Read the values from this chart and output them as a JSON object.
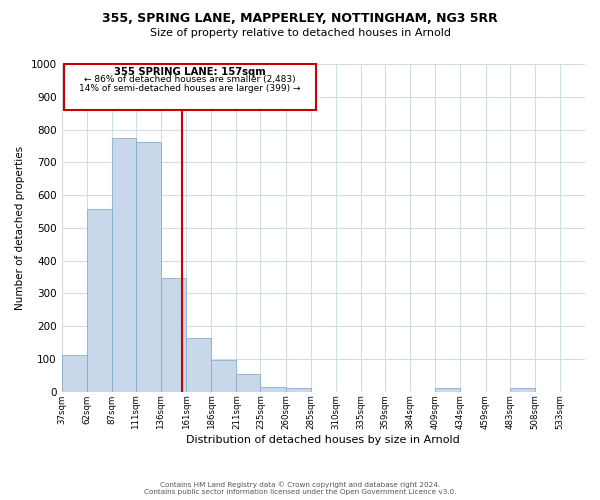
{
  "title1": "355, SPRING LANE, MAPPERLEY, NOTTINGHAM, NG3 5RR",
  "title2": "Size of property relative to detached houses in Arnold",
  "xlabel": "Distribution of detached houses by size in Arnold",
  "ylabel": "Number of detached properties",
  "bar_left_edges": [
    37,
    62,
    87,
    111,
    136,
    161,
    186,
    211,
    235,
    260,
    285,
    310,
    335,
    359,
    384,
    409,
    434,
    459,
    483,
    508
  ],
  "bar_widths": [
    25,
    25,
    24,
    25,
    25,
    25,
    25,
    24,
    25,
    25,
    25,
    25,
    24,
    25,
    25,
    25,
    25,
    24,
    25,
    25
  ],
  "bar_heights": [
    113,
    558,
    775,
    762,
    348,
    165,
    98,
    55,
    15,
    12,
    0,
    0,
    0,
    0,
    0,
    12,
    0,
    0,
    12,
    0
  ],
  "bar_color": "#c8d8ea",
  "bar_edge_color": "#8ab0cc",
  "xlim_left": 37,
  "xlim_right": 558,
  "ylim": [
    0,
    1000
  ],
  "yticks": [
    0,
    100,
    200,
    300,
    400,
    500,
    600,
    700,
    800,
    900,
    1000
  ],
  "xtick_positions": [
    37,
    62,
    87,
    111,
    136,
    161,
    186,
    211,
    235,
    260,
    285,
    310,
    335,
    359,
    384,
    409,
    434,
    459,
    483,
    508,
    533
  ],
  "xtick_labels": [
    "37sqm",
    "62sqm",
    "87sqm",
    "111sqm",
    "136sqm",
    "161sqm",
    "186sqm",
    "211sqm",
    "235sqm",
    "260sqm",
    "285sqm",
    "310sqm",
    "335sqm",
    "359sqm",
    "384sqm",
    "409sqm",
    "434sqm",
    "459sqm",
    "483sqm",
    "508sqm",
    "533sqm"
  ],
  "vline_x": 157,
  "vline_color": "#cc0000",
  "annotation_title": "355 SPRING LANE: 157sqm",
  "annotation_line1": "← 86% of detached houses are smaller (2,483)",
  "annotation_line2": "14% of semi-detached houses are larger (399) →",
  "footer_line1": "Contains HM Land Registry data © Crown copyright and database right 2024.",
  "footer_line2": "Contains public sector information licensed under the Open Government Licence v3.0.",
  "background_color": "#ffffff",
  "grid_color": "#d0dce8"
}
